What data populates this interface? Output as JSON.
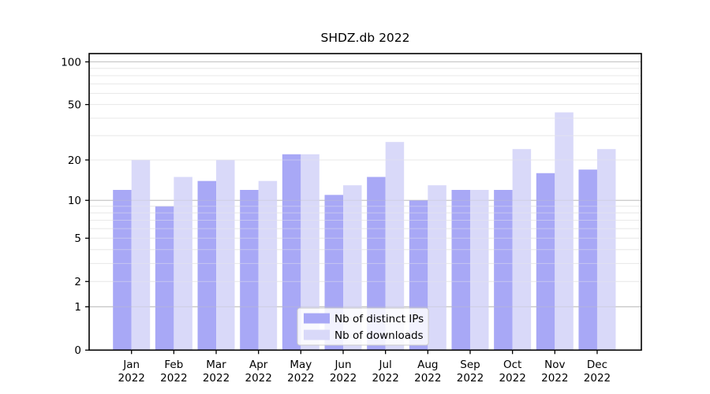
{
  "figure": {
    "background": "#ffffff"
  },
  "chart_data": {
    "type": "bar",
    "title": "SHDZ.db 2022",
    "categories": [
      "Jan",
      "Feb",
      "Mar",
      "Apr",
      "May",
      "Jun",
      "Jul",
      "Aug",
      "Sep",
      "Oct",
      "Nov",
      "Dec"
    ],
    "x_year_label": "2022",
    "series": [
      {
        "name": "Nb of distinct IPs",
        "color": "#a8a8f6",
        "values": [
          12,
          9,
          14,
          12,
          22,
          11,
          15,
          10,
          12,
          12,
          16,
          17
        ]
      },
      {
        "name": "Nb of downloads",
        "color": "#d9d9f9",
        "values": [
          20,
          15,
          20,
          14,
          22,
          13,
          27,
          13,
          12,
          24,
          44,
          24
        ]
      }
    ],
    "xlabel": "",
    "ylabel": "",
    "yscale": "log1p",
    "ylim": [
      0,
      115
    ],
    "yticks": [
      0,
      1,
      2,
      5,
      10,
      20,
      50,
      100
    ],
    "grid": {
      "on": true,
      "major_lines": [
        1,
        10,
        100
      ],
      "minor_lines": [
        2,
        3,
        4,
        5,
        6,
        7,
        8,
        9,
        20,
        30,
        40,
        50,
        60,
        70,
        80,
        90
      ],
      "major_color": "#c2c2c2",
      "minor_color": "#e9e9e9"
    },
    "legend": {
      "position": "lower center",
      "entries": [
        "Nb of distinct IPs",
        "Nb of downloads"
      ],
      "border_color": "#cccccc",
      "background": "#ffffff"
    },
    "axis_color": "#000000",
    "text_color": "#000000"
  }
}
